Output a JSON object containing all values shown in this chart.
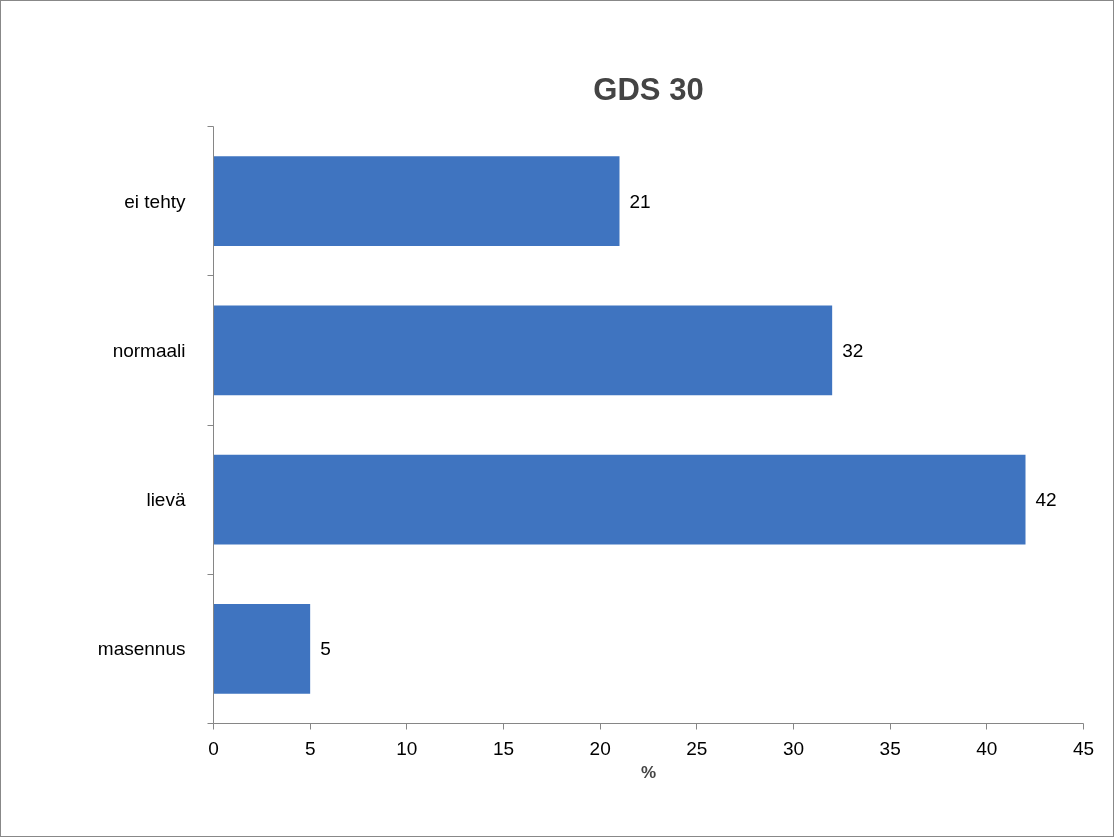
{
  "chart_data": {
    "type": "bar",
    "orientation": "horizontal",
    "title": "GDS 30",
    "xlabel": "%",
    "categories": [
      "ei tehty",
      "normaali",
      "lievä",
      "masennus"
    ],
    "values": [
      21,
      32,
      42,
      5
    ],
    "color": "#3f74c0",
    "xlim": [
      0,
      45
    ],
    "xticks": [
      0,
      5,
      10,
      15,
      20,
      25,
      30,
      35,
      40,
      45
    ],
    "grid": false,
    "data_labels": true
  }
}
